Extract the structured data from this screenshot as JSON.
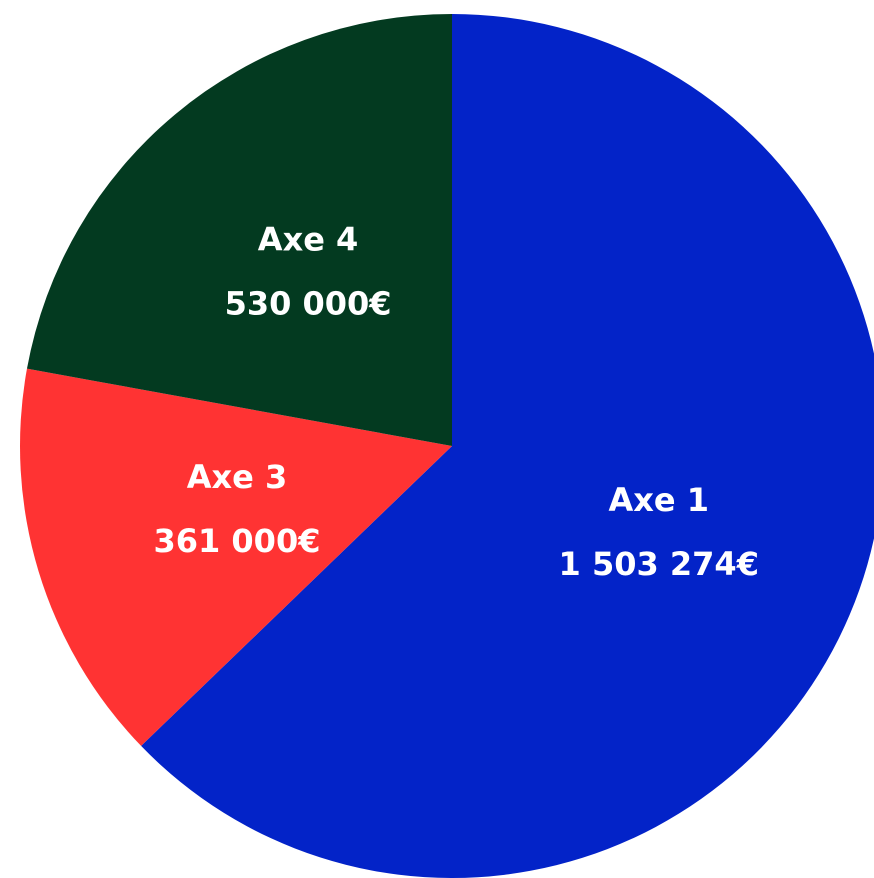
{
  "chart_data": {
    "type": "pie",
    "categories": [
      "Axe 1",
      "Axe 3",
      "Axe 4"
    ],
    "values": [
      1503274,
      361000,
      530000
    ],
    "value_labels": [
      "1 503 274€",
      "361 000€",
      "530 000€"
    ],
    "colors": [
      "#0323c8",
      "#ff3333",
      "#033a20"
    ]
  }
}
